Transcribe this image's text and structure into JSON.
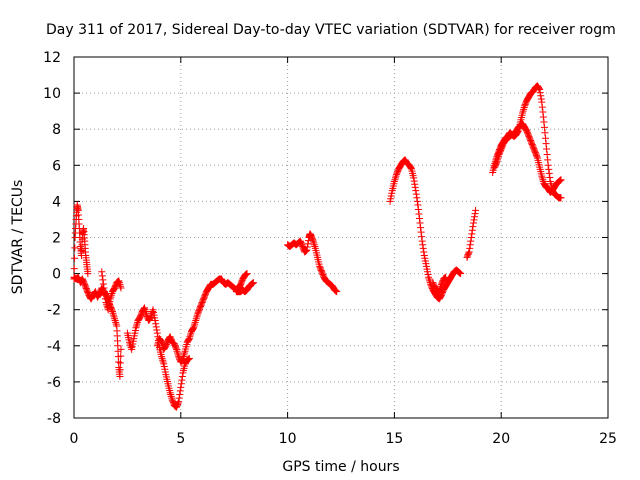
{
  "chart_data": {
    "type": "scatter",
    "title": "Day 311 of 2017, Sidereal Day-to-day VTEC variation (SDTVAR) for receiver rogm",
    "xlabel": "GPS time / hours",
    "ylabel": "SDTVAR / TECUs",
    "xlim": [
      0,
      25
    ],
    "ylim": [
      -8,
      12
    ],
    "xticks": [
      0,
      5,
      10,
      15,
      20,
      25
    ],
    "yticks": [
      -8,
      -6,
      -4,
      -2,
      0,
      2,
      4,
      6,
      8,
      10,
      12
    ],
    "xtick_labels": [
      "0",
      "5",
      "10",
      "15",
      "20",
      "25"
    ],
    "ytick_labels": [
      "-8",
      "-6",
      "-4",
      "-2",
      "0",
      "2",
      "4",
      "6",
      "8",
      "10",
      "12"
    ],
    "grid": true,
    "marker": "plus",
    "color": "#ff0000",
    "series": [
      {
        "name": "seg1a",
        "points": [
          [
            0.0,
            -0.3
          ],
          [
            0.05,
            2.0
          ],
          [
            0.1,
            3.0
          ],
          [
            0.15,
            3.8
          ],
          [
            0.2,
            3.5
          ],
          [
            0.25,
            2.5
          ],
          [
            0.3,
            1.5
          ],
          [
            0.35,
            1.0
          ],
          [
            0.4,
            2.2
          ],
          [
            0.45,
            2.5
          ],
          [
            0.5,
            1.8
          ],
          [
            0.55,
            1.0
          ],
          [
            0.6,
            0.5
          ],
          [
            0.65,
            0.0
          ]
        ]
      },
      {
        "name": "seg1b",
        "points": [
          [
            0.0,
            -0.2
          ],
          [
            0.1,
            -0.3
          ],
          [
            0.2,
            -0.2
          ],
          [
            0.3,
            -0.5
          ],
          [
            0.4,
            -0.3
          ],
          [
            0.5,
            -0.6
          ],
          [
            0.6,
            -0.9
          ],
          [
            0.7,
            -1.2
          ],
          [
            0.8,
            -1.4
          ],
          [
            0.9,
            -1.2
          ],
          [
            1.0,
            -1.0
          ],
          [
            1.1,
            -1.3
          ],
          [
            1.2,
            -1.1
          ],
          [
            1.3,
            -0.8
          ],
          [
            1.4,
            -1.0
          ],
          [
            1.5,
            -1.2
          ],
          [
            1.6,
            -1.5
          ],
          [
            1.7,
            -1.8
          ],
          [
            1.8,
            -2.1
          ],
          [
            1.9,
            -2.5
          ],
          [
            2.0,
            -2.9
          ],
          [
            2.05,
            -4.0
          ],
          [
            2.1,
            -5.2
          ],
          [
            2.15,
            -5.7
          ],
          [
            2.2,
            -4.2
          ]
        ]
      },
      {
        "name": "seg1c",
        "points": [
          [
            1.3,
            0.1
          ],
          [
            1.4,
            -0.8
          ],
          [
            1.5,
            -1.6
          ],
          [
            1.6,
            -2.0
          ],
          [
            1.7,
            -1.4
          ],
          [
            1.8,
            -1.0
          ],
          [
            1.9,
            -0.8
          ],
          [
            2.0,
            -0.5
          ],
          [
            2.1,
            -0.4
          ],
          [
            2.2,
            -0.8
          ]
        ]
      },
      {
        "name": "seg2",
        "points": [
          [
            2.5,
            -3.3
          ],
          [
            2.6,
            -3.8
          ],
          [
            2.7,
            -4.2
          ],
          [
            2.8,
            -3.6
          ],
          [
            2.9,
            -3.0
          ],
          [
            3.0,
            -2.6
          ],
          [
            3.1,
            -2.4
          ],
          [
            3.2,
            -2.1
          ],
          [
            3.3,
            -1.9
          ],
          [
            3.4,
            -2.3
          ],
          [
            3.5,
            -2.6
          ],
          [
            3.6,
            -2.4
          ],
          [
            3.7,
            -2.0
          ],
          [
            3.8,
            -2.6
          ],
          [
            3.9,
            -3.3
          ],
          [
            4.0,
            -4.1
          ],
          [
            4.1,
            -4.6
          ],
          [
            4.2,
            -5.0
          ],
          [
            4.3,
            -5.6
          ],
          [
            4.4,
            -6.1
          ],
          [
            4.5,
            -6.6
          ],
          [
            4.6,
            -7.0
          ],
          [
            4.7,
            -7.3
          ],
          [
            4.8,
            -7.4
          ],
          [
            4.9,
            -7.1
          ],
          [
            5.0,
            -6.3
          ],
          [
            5.1,
            -5.5
          ],
          [
            5.2,
            -5.0
          ],
          [
            5.3,
            -4.8
          ],
          [
            5.4,
            -4.7
          ]
        ]
      },
      {
        "name": "seg3",
        "points": [
          [
            3.9,
            -4.0
          ],
          [
            4.0,
            -3.6
          ],
          [
            4.1,
            -3.8
          ],
          [
            4.2,
            -4.2
          ],
          [
            4.3,
            -4.0
          ],
          [
            4.4,
            -3.7
          ],
          [
            4.5,
            -3.5
          ],
          [
            4.6,
            -3.8
          ],
          [
            4.7,
            -3.9
          ],
          [
            4.8,
            -4.2
          ],
          [
            4.9,
            -4.6
          ],
          [
            5.0,
            -4.9
          ],
          [
            5.1,
            -4.7
          ],
          [
            5.2,
            -4.3
          ],
          [
            5.3,
            -3.8
          ],
          [
            5.4,
            -3.6
          ],
          [
            5.5,
            -3.2
          ],
          [
            5.6,
            -3.0
          ],
          [
            5.7,
            -2.6
          ],
          [
            5.8,
            -2.2
          ],
          [
            5.9,
            -1.9
          ],
          [
            6.0,
            -1.6
          ],
          [
            6.1,
            -1.3
          ],
          [
            6.2,
            -1.0
          ],
          [
            6.3,
            -0.8
          ],
          [
            6.4,
            -0.6
          ],
          [
            6.5,
            -0.6
          ],
          [
            6.6,
            -0.5
          ],
          [
            6.7,
            -0.4
          ],
          [
            6.8,
            -0.3
          ],
          [
            6.9,
            -0.3
          ],
          [
            7.0,
            -0.5
          ],
          [
            7.1,
            -0.6
          ],
          [
            7.2,
            -0.5
          ],
          [
            7.3,
            -0.6
          ],
          [
            7.4,
            -0.7
          ],
          [
            7.5,
            -0.8
          ],
          [
            7.6,
            -0.9
          ],
          [
            7.7,
            -0.8
          ],
          [
            7.8,
            -0.6
          ],
          [
            7.9,
            -0.3
          ],
          [
            8.0,
            -0.1
          ],
          [
            8.1,
            0.0
          ]
        ]
      },
      {
        "name": "seg4",
        "points": [
          [
            7.6,
            -1.0
          ],
          [
            7.7,
            -1.0
          ],
          [
            7.8,
            -1.0
          ],
          [
            7.9,
            -0.9
          ],
          [
            8.0,
            -1.0
          ],
          [
            8.1,
            -0.9
          ],
          [
            8.2,
            -0.7
          ],
          [
            8.3,
            -0.6
          ],
          [
            8.4,
            -0.5
          ]
        ]
      },
      {
        "name": "seg5",
        "points": [
          [
            10.0,
            1.6
          ],
          [
            10.1,
            1.5
          ],
          [
            10.2,
            1.6
          ],
          [
            10.3,
            1.7
          ],
          [
            10.4,
            1.6
          ],
          [
            10.5,
            1.7
          ],
          [
            10.6,
            1.8
          ],
          [
            10.7,
            1.5
          ],
          [
            10.8,
            1.2
          ],
          [
            10.9,
            1.3
          ],
          [
            11.0,
            2.0
          ],
          [
            11.05,
            2.2
          ],
          [
            11.1,
            2.1
          ],
          [
            11.2,
            1.8
          ],
          [
            11.3,
            1.4
          ],
          [
            11.4,
            0.9
          ],
          [
            11.5,
            0.4
          ],
          [
            11.6,
            0.1
          ],
          [
            11.7,
            -0.2
          ],
          [
            11.8,
            -0.4
          ],
          [
            11.9,
            -0.5
          ],
          [
            12.0,
            -0.6
          ],
          [
            12.1,
            -0.7
          ],
          [
            12.2,
            -0.9
          ],
          [
            12.3,
            -1.0
          ]
        ]
      },
      {
        "name": "seg6",
        "points": [
          [
            14.8,
            4.0
          ],
          [
            14.9,
            4.6
          ],
          [
            15.0,
            5.1
          ],
          [
            15.1,
            5.5
          ],
          [
            15.2,
            5.8
          ],
          [
            15.3,
            6.0
          ],
          [
            15.4,
            6.2
          ],
          [
            15.5,
            6.3
          ],
          [
            15.6,
            6.1
          ],
          [
            15.7,
            6.0
          ],
          [
            15.8,
            5.8
          ],
          [
            15.9,
            5.3
          ],
          [
            16.0,
            4.6
          ],
          [
            16.1,
            3.8
          ],
          [
            16.2,
            2.8
          ],
          [
            16.3,
            1.8
          ],
          [
            16.4,
            1.0
          ],
          [
            16.5,
            0.4
          ],
          [
            16.6,
            -0.2
          ],
          [
            16.7,
            -0.6
          ],
          [
            16.8,
            -0.9
          ],
          [
            16.9,
            -1.1
          ],
          [
            17.0,
            -1.3
          ],
          [
            17.1,
            -1.4
          ],
          [
            17.2,
            -1.2
          ],
          [
            17.3,
            -0.9
          ],
          [
            17.4,
            -0.7
          ],
          [
            17.5,
            -0.5
          ],
          [
            17.6,
            -0.3
          ],
          [
            17.7,
            -0.1
          ],
          [
            17.8,
            0.1
          ],
          [
            17.9,
            0.2
          ],
          [
            18.0,
            0.1
          ],
          [
            18.1,
            0.0
          ]
        ]
      },
      {
        "name": "seg6b",
        "points": [
          [
            16.8,
            -0.5
          ],
          [
            16.9,
            -0.8
          ],
          [
            17.0,
            -0.9
          ],
          [
            17.1,
            -1.0
          ],
          [
            17.2,
            -0.6
          ],
          [
            17.3,
            -0.3
          ],
          [
            17.4,
            -0.2
          ]
        ]
      },
      {
        "name": "seg7",
        "points": [
          [
            18.4,
            0.9
          ],
          [
            18.5,
            1.2
          ],
          [
            18.6,
            2.0
          ],
          [
            18.7,
            2.8
          ],
          [
            18.8,
            3.5
          ]
        ]
      },
      {
        "name": "seg8a",
        "points": [
          [
            19.6,
            5.6
          ],
          [
            19.7,
            6.1
          ],
          [
            19.8,
            6.5
          ],
          [
            19.9,
            6.8
          ],
          [
            20.0,
            7.1
          ],
          [
            20.1,
            7.3
          ],
          [
            20.2,
            7.5
          ],
          [
            20.3,
            7.6
          ],
          [
            20.4,
            7.8
          ],
          [
            20.5,
            7.7
          ],
          [
            20.6,
            7.6
          ],
          [
            20.7,
            7.7
          ],
          [
            20.8,
            7.9
          ],
          [
            20.9,
            8.4
          ],
          [
            21.0,
            8.9
          ],
          [
            21.1,
            9.3
          ],
          [
            21.2,
            9.6
          ],
          [
            21.3,
            9.8
          ],
          [
            21.4,
            10.0
          ],
          [
            21.5,
            10.1
          ],
          [
            21.6,
            10.3
          ],
          [
            21.7,
            10.4
          ],
          [
            21.8,
            10.2
          ],
          [
            21.9,
            9.5
          ],
          [
            22.0,
            8.4
          ],
          [
            22.1,
            7.2
          ],
          [
            22.2,
            6.0
          ],
          [
            22.3,
            5.1
          ],
          [
            22.4,
            4.6
          ],
          [
            22.5,
            4.4
          ],
          [
            22.6,
            4.3
          ],
          [
            22.7,
            4.2
          ],
          [
            22.8,
            4.2
          ]
        ]
      },
      {
        "name": "seg8b",
        "points": [
          [
            19.7,
            5.9
          ],
          [
            19.8,
            6.2
          ],
          [
            19.9,
            6.6
          ],
          [
            20.0,
            6.9
          ],
          [
            20.1,
            7.2
          ],
          [
            20.2,
            7.4
          ],
          [
            20.3,
            7.5
          ],
          [
            20.4,
            7.6
          ],
          [
            20.5,
            7.7
          ],
          [
            20.6,
            7.7
          ],
          [
            20.7,
            7.9
          ],
          [
            20.8,
            8.1
          ],
          [
            20.9,
            8.2
          ],
          [
            21.0,
            8.3
          ],
          [
            21.1,
            8.1
          ],
          [
            21.2,
            7.9
          ],
          [
            21.3,
            7.6
          ],
          [
            21.4,
            7.3
          ],
          [
            21.5,
            7.0
          ],
          [
            21.6,
            6.7
          ],
          [
            21.7,
            6.4
          ],
          [
            21.8,
            5.9
          ],
          [
            21.9,
            5.4
          ],
          [
            22.0,
            5.0
          ],
          [
            22.1,
            4.8
          ],
          [
            22.2,
            4.7
          ],
          [
            22.3,
            4.5
          ],
          [
            22.4,
            4.6
          ],
          [
            22.5,
            4.8
          ],
          [
            22.6,
            5.0
          ],
          [
            22.7,
            5.1
          ],
          [
            22.8,
            5.2
          ]
        ]
      }
    ]
  }
}
